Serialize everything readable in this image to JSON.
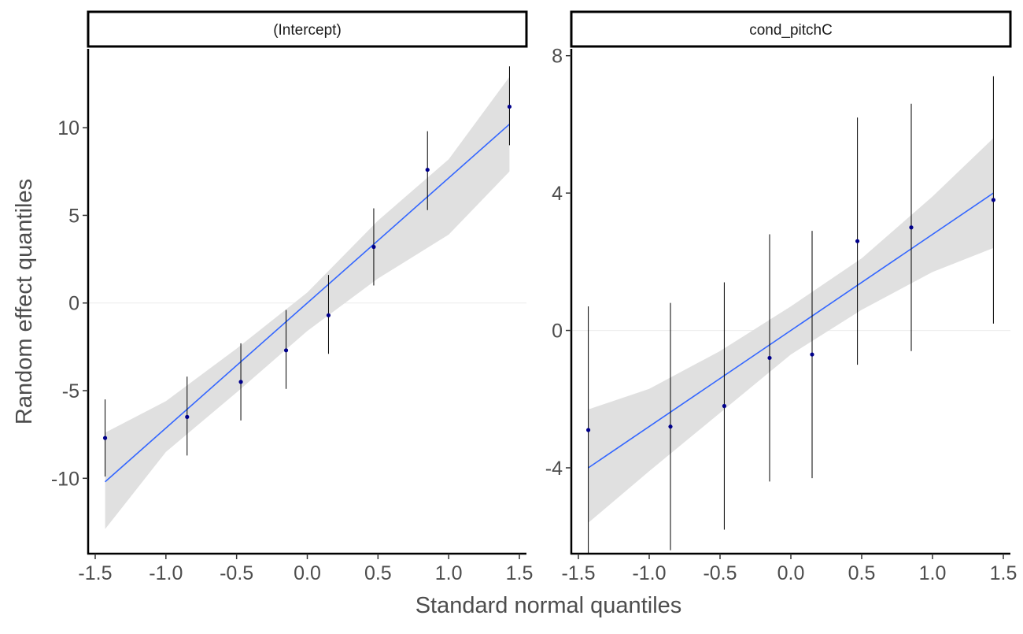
{
  "chart_data": {
    "type": "scatter",
    "xlabel": "Standard normal quantiles",
    "ylabel": "Random effect quantiles",
    "colors": {
      "point": "#00008B",
      "line": "#3366FF",
      "ribbon": "#E0E0E0",
      "errorbar": "#000000",
      "zero_line": "#EBEBEB"
    },
    "grid": false,
    "legend": "none",
    "x_ticks": [
      "-1.5",
      "-1.0",
      "-0.5",
      "0.0",
      "0.5",
      "1.0",
      "1.5"
    ],
    "xlim": [
      -1.55,
      1.55
    ],
    "panels": [
      {
        "title": "(Intercept)",
        "ylim": [
          -14.3,
          14.5
        ],
        "y_ticks": [
          "-10",
          "-5",
          "0",
          "5",
          "10"
        ],
        "points": [
          {
            "x": -1.43,
            "y": -7.7,
            "lo": -9.9,
            "hi": -5.5
          },
          {
            "x": -0.85,
            "y": -6.5,
            "lo": -8.7,
            "hi": -4.2
          },
          {
            "x": -0.47,
            "y": -4.5,
            "lo": -6.7,
            "hi": -2.3
          },
          {
            "x": -0.15,
            "y": -2.7,
            "lo": -4.9,
            "hi": -0.4
          },
          {
            "x": 0.15,
            "y": -0.7,
            "lo": -2.9,
            "hi": 1.6
          },
          {
            "x": 0.47,
            "y": 3.2,
            "lo": 1.0,
            "hi": 5.4
          },
          {
            "x": 0.85,
            "y": 7.6,
            "lo": 5.3,
            "hi": 9.8
          },
          {
            "x": 1.43,
            "y": 11.2,
            "lo": 9.0,
            "hi": 13.5
          }
        ],
        "fit": {
          "x": [
            -1.43,
            1.43
          ],
          "y": [
            -10.2,
            10.2
          ]
        },
        "ribbon": {
          "x": [
            -1.43,
            -1.0,
            -0.5,
            0.0,
            0.5,
            1.0,
            1.43
          ],
          "lower": [
            -12.9,
            -8.5,
            -5.1,
            -1.6,
            1.4,
            3.9,
            7.5
          ],
          "upper": [
            -7.4,
            -5.6,
            -2.6,
            0.6,
            4.7,
            8.2,
            12.9
          ]
        }
      },
      {
        "title": "cond_pitchC",
        "ylim": [
          -6.5,
          8.2
        ],
        "y_ticks": [
          "-4",
          "0",
          "4",
          "8"
        ],
        "points": [
          {
            "x": -1.43,
            "y": -2.9,
            "lo": -6.5,
            "hi": 0.7
          },
          {
            "x": -0.85,
            "y": -2.8,
            "lo": -6.4,
            "hi": 0.8
          },
          {
            "x": -0.47,
            "y": -2.2,
            "lo": -5.8,
            "hi": 1.4
          },
          {
            "x": -0.15,
            "y": -0.8,
            "lo": -4.4,
            "hi": 2.8
          },
          {
            "x": 0.15,
            "y": -0.7,
            "lo": -4.3,
            "hi": 2.9
          },
          {
            "x": 0.47,
            "y": 2.6,
            "lo": -1.0,
            "hi": 6.2
          },
          {
            "x": 0.85,
            "y": 3.0,
            "lo": -0.6,
            "hi": 6.6
          },
          {
            "x": 1.43,
            "y": 3.8,
            "lo": 0.2,
            "hi": 7.4
          }
        ],
        "fit": {
          "x": [
            -1.43,
            1.43
          ],
          "y": [
            -4.0,
            4.0
          ]
        },
        "ribbon": {
          "x": [
            -1.43,
            -1.0,
            -0.5,
            0.0,
            0.5,
            1.0,
            1.43
          ],
          "lower": [
            -5.6,
            -4.1,
            -2.4,
            -0.7,
            0.6,
            1.7,
            2.4
          ],
          "upper": [
            -2.3,
            -1.7,
            -0.6,
            0.7,
            2.1,
            3.9,
            5.6
          ]
        }
      }
    ]
  }
}
